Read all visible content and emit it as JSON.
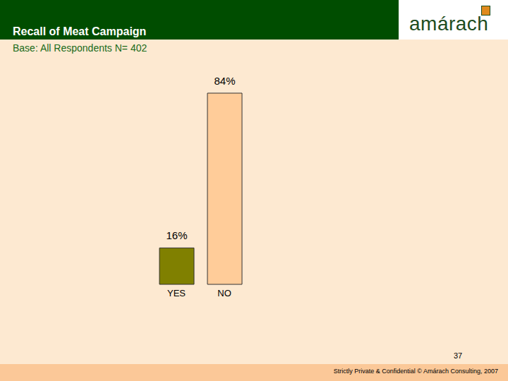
{
  "chart_data": {
    "type": "bar",
    "title": "Recall of Meat Campaign",
    "subtitle": "Base: All Respondents N= 402",
    "categories": [
      "YES",
      "NO"
    ],
    "values": [
      16,
      84
    ],
    "value_labels": [
      "16%",
      "84%"
    ],
    "colors": [
      "#808000",
      "#FFCC99"
    ],
    "data_labels": true,
    "tick_labels": "x",
    "annotations": [
      "amárach",
      "37",
      "Strictly Private & Confidential © Amárach Consulting, 2007"
    ]
  }
}
